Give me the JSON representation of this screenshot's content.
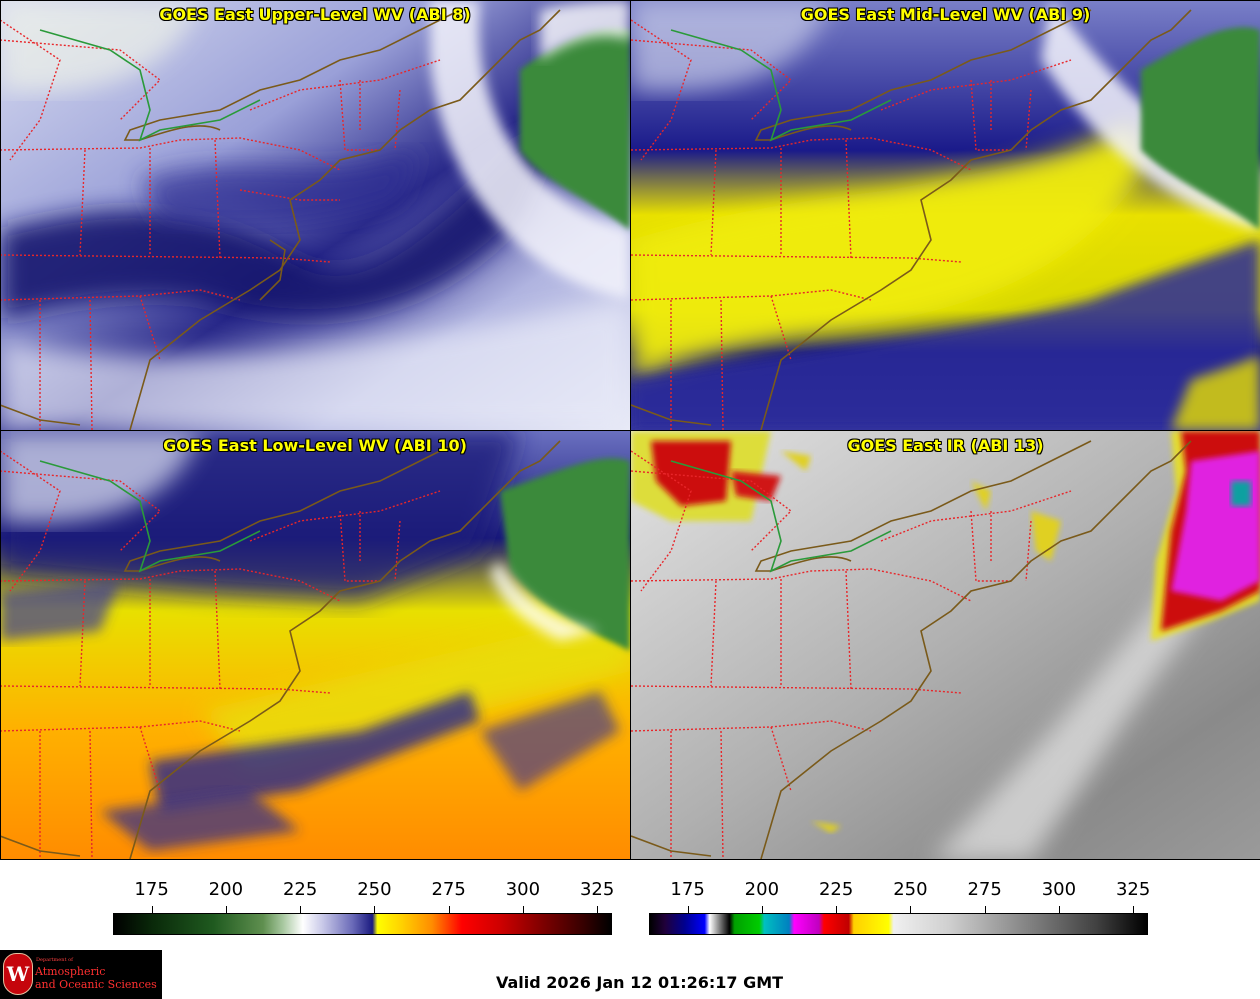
{
  "panels": [
    {
      "title": "GOES East Upper-Level WV (ABI 8)",
      "style": "wv-upper"
    },
    {
      "title": "GOES East Mid-Level WV (ABI 9)",
      "style": "wv-mid"
    },
    {
      "title": "GOES East Low-Level WV (ABI 10)",
      "style": "wv-low"
    },
    {
      "title": "GOES East IR (ABI 13)",
      "style": "ir"
    }
  ],
  "colorbars": [
    {
      "name": "water-vapor-colorbar",
      "ticks": [
        "175",
        "200",
        "225",
        "250",
        "275",
        "300",
        "325"
      ],
      "min": 162,
      "max": 330
    },
    {
      "name": "infrared-colorbar",
      "ticks": [
        "175",
        "200",
        "225",
        "250",
        "275",
        "300",
        "325"
      ],
      "min": 162,
      "max": 330
    }
  ],
  "logo": {
    "crest_letter": "W",
    "dept": "Department of",
    "line1": "Atmospheric",
    "line2": "and Oceanic Sciences"
  },
  "valid_time": "Valid 2026 Jan 12 01:26:17 GMT",
  "colors": {
    "title_text": "#ffff00",
    "state_borders": "#e8262a",
    "coastlines": "#7a5a1a",
    "canada_border": "#2a9a3a"
  }
}
